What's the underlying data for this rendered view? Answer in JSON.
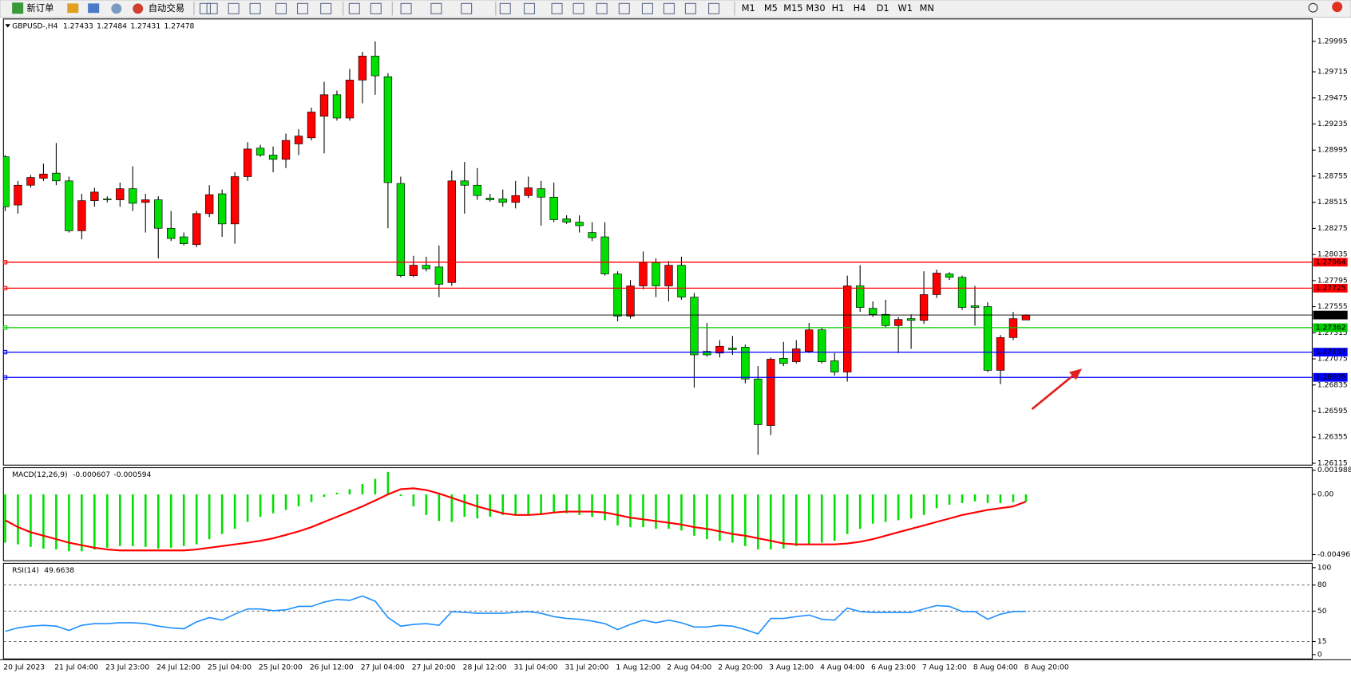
{
  "toolbar": {
    "new_order": "新订单",
    "auto_trading": "自动交易",
    "timeframes": [
      "M1",
      "M5",
      "M15",
      "M30",
      "H1",
      "H4",
      "D1",
      "W1",
      "MN"
    ]
  },
  "chart_data": [
    {
      "type": "candlestick",
      "title": "GBPUSD-,H4",
      "bull_color": "#ff0000",
      "bear_color": "#00e000",
      "ylim": [
        1.26098,
        1.30201
      ],
      "yticks": [
        1.29995,
        1.29715,
        1.29475,
        1.29235,
        1.28995,
        1.28755,
        1.28515,
        1.28275,
        1.28035,
        1.27795,
        1.27555,
        1.27315,
        1.27075,
        1.26835,
        1.26595,
        1.26355,
        1.26115
      ],
      "hlines": [
        {
          "value": 1.27964,
          "color": "#ff0000"
        },
        {
          "value": 1.27725,
          "color": "#ff0000"
        },
        {
          "value": 1.27362,
          "color": "#00cc00"
        },
        {
          "value": 1.27137,
          "color": "#0000ff"
        },
        {
          "value": 1.26905,
          "color": "#0000ff"
        }
      ],
      "categories": [
        "20 Jul 2023",
        null,
        null,
        null,
        "21 Jul 04:00",
        null,
        null,
        null,
        "23 Jul 23:00",
        null,
        null,
        null,
        "24 Jul 12:00",
        null,
        null,
        null,
        "25 Jul 04:00",
        null,
        null,
        null,
        "25 Jul 20:00",
        null,
        null,
        null,
        "26 Jul 12:00",
        null,
        null,
        null,
        "27 Jul 04:00",
        null,
        null,
        null,
        "27 Jul 20:00",
        null,
        null,
        null,
        "28 Jul 12:00",
        null,
        null,
        null,
        "31 Jul 04:00",
        null,
        null,
        null,
        "31 Jul 20:00",
        null,
        null,
        null,
        "1 Aug 12:00",
        null,
        null,
        null,
        "2 Aug 04:00",
        null,
        null,
        null,
        "2 Aug 20:00",
        null,
        null,
        null,
        "3 Aug 12:00",
        null,
        null,
        null,
        "4 Aug 04:00",
        null,
        null,
        null,
        "6 Aug 23:00",
        null,
        null,
        null,
        "7 Aug 12:00",
        null,
        null,
        null,
        "8 Aug 04:00",
        null,
        null,
        null,
        "8 Aug 20:00"
      ],
      "ohlc": [
        [
          1.28934,
          1.28949,
          1.28435,
          1.28474
        ],
        [
          1.2849,
          1.28712,
          1.28411,
          1.28672
        ],
        [
          1.28672,
          1.28767,
          1.28648,
          1.28743
        ],
        [
          1.28736,
          1.2887,
          1.28712,
          1.28775
        ],
        [
          1.28783,
          1.2906,
          1.28672,
          1.28712
        ],
        [
          1.28712,
          1.28751,
          1.28237,
          1.28253
        ],
        [
          1.28253,
          1.28593,
          1.28174,
          1.2853
        ],
        [
          1.2853,
          1.28648,
          1.28474,
          1.28609
        ],
        [
          1.28546,
          1.2857,
          1.28514,
          1.28538
        ],
        [
          1.28538,
          1.28696,
          1.28474,
          1.2864
        ],
        [
          1.2864,
          1.28846,
          1.28435,
          1.28506
        ],
        [
          1.28514,
          1.28593,
          1.28237,
          1.28538
        ],
        [
          1.28538,
          1.2857,
          1.27999,
          1.28276
        ],
        [
          1.28276,
          1.28435,
          1.28158,
          1.28182
        ],
        [
          1.28197,
          1.28237,
          1.28118,
          1.28134
        ],
        [
          1.28126,
          1.28435,
          1.28102,
          1.28411
        ],
        [
          1.28411,
          1.28672,
          1.28379,
          1.28585
        ],
        [
          1.28593,
          1.28633,
          1.28197,
          1.28316
        ],
        [
          1.28316,
          1.28791,
          1.28134,
          1.28751
        ],
        [
          1.28751,
          1.29068,
          1.28712,
          1.29005
        ],
        [
          1.29013,
          1.29044,
          1.28934,
          1.28949
        ],
        [
          1.28949,
          1.29028,
          1.28791,
          1.2891
        ],
        [
          1.2891,
          1.29147,
          1.2883,
          1.29084
        ],
        [
          1.29052,
          1.29187,
          1.28949,
          1.29124
        ],
        [
          1.29108,
          1.29385,
          1.29084,
          1.29345
        ],
        [
          1.29306,
          1.29623,
          1.28965,
          1.29504
        ],
        [
          1.29504,
          1.29543,
          1.29266,
          1.2929
        ],
        [
          1.2929,
          1.29741,
          1.29266,
          1.29639
        ],
        [
          1.29639,
          1.29899,
          1.29425,
          1.2986
        ],
        [
          1.2986,
          1.29995,
          1.29504,
          1.29678
        ],
        [
          1.2967,
          1.29702,
          1.28276,
          1.28696
        ],
        [
          1.28688,
          1.28751,
          1.27825,
          1.27841
        ],
        [
          1.27841,
          1.28023,
          1.27825,
          1.27936
        ],
        [
          1.27936,
          1.28015,
          1.2788,
          1.27904
        ],
        [
          1.2792,
          1.28118,
          1.27643,
          1.27761
        ],
        [
          1.27777,
          1.28807,
          1.27746,
          1.28712
        ],
        [
          1.28712,
          1.28886,
          1.28411,
          1.28672
        ],
        [
          1.28672,
          1.2883,
          1.28538,
          1.28577
        ],
        [
          1.28554,
          1.28593,
          1.28522,
          1.28538
        ],
        [
          1.28546,
          1.28633,
          1.28474,
          1.28514
        ],
        [
          1.28514,
          1.28712,
          1.28459,
          1.28577
        ],
        [
          1.28577,
          1.28751,
          1.28554,
          1.28648
        ],
        [
          1.2864,
          1.28712,
          1.283,
          1.28562
        ],
        [
          1.28562,
          1.28696,
          1.28332,
          1.28355
        ],
        [
          1.28363,
          1.28395,
          1.28316,
          1.28332
        ],
        [
          1.28332,
          1.28395,
          1.28237,
          1.283
        ],
        [
          1.28237,
          1.28332,
          1.28158,
          1.2819
        ],
        [
          1.28197,
          1.28332,
          1.27841,
          1.27856
        ],
        [
          1.27856,
          1.2788,
          1.27421,
          1.27468
        ],
        [
          1.27468,
          1.27801,
          1.27445,
          1.27746
        ],
        [
          1.27746,
          1.28062,
          1.27714,
          1.27959
        ],
        [
          1.27959,
          1.27999,
          1.27643,
          1.27746
        ],
        [
          1.27746,
          1.27975,
          1.27603,
          1.27936
        ],
        [
          1.27936,
          1.28015,
          1.27619,
          1.27643
        ],
        [
          1.27643,
          1.27682,
          1.26811,
          1.27112
        ],
        [
          1.27144,
          1.27405,
          1.27096,
          1.27112
        ],
        [
          1.27128,
          1.27247,
          1.27088,
          1.27191
        ],
        [
          1.27175,
          1.27286,
          1.27112,
          1.2716
        ],
        [
          1.27183,
          1.27207,
          1.2685,
          1.2689
        ],
        [
          1.2689,
          1.27009,
          1.26193,
          1.26471
        ],
        [
          1.26462,
          1.27088,
          1.26375,
          1.27072
        ],
        [
          1.2708,
          1.27231,
          1.27009,
          1.27033
        ],
        [
          1.27049,
          1.27247,
          1.27033,
          1.27167
        ],
        [
          1.27144,
          1.27405,
          1.27128,
          1.27342
        ],
        [
          1.27342,
          1.27365,
          1.27033,
          1.27049
        ],
        [
          1.27057,
          1.27128,
          1.26922,
          1.26954
        ],
        [
          1.26954,
          1.27841,
          1.26866,
          1.27746
        ],
        [
          1.27746,
          1.27936,
          1.27508,
          1.27548
        ],
        [
          1.2754,
          1.27603,
          1.27461,
          1.27484
        ],
        [
          1.27484,
          1.27619,
          1.27365,
          1.27381
        ],
        [
          1.27381,
          1.27461,
          1.27128,
          1.27437
        ],
        [
          1.27445,
          1.27484,
          1.27167,
          1.27429
        ],
        [
          1.27429,
          1.2788,
          1.27397,
          1.27666
        ],
        [
          1.27666,
          1.27896,
          1.27635,
          1.27864
        ],
        [
          1.27856,
          1.27872,
          1.27801,
          1.27825
        ],
        [
          1.27825,
          1.27841,
          1.27524,
          1.27548
        ],
        [
          1.27563,
          1.27746,
          1.27381,
          1.27548
        ],
        [
          1.27556,
          1.27595,
          1.26954,
          1.2697
        ],
        [
          1.2697,
          1.27294,
          1.26842,
          1.27271
        ],
        [
          1.27271,
          1.27508,
          1.27247,
          1.27445
        ],
        [
          1.27433,
          1.27484,
          1.27431,
          1.27478
        ]
      ]
    },
    {
      "type": "macd",
      "title": "MACD(12,26,9)",
      "ylim": [
        -0.00547,
        0.0022
      ],
      "yticks": [
        0.001988,
        {
          "value": 0,
          "label": "0.00"
        },
        -0.004967
      ],
      "series": [
        {
          "color": "#00e000",
          "values": [
            -0.00398,
            -0.00412,
            -0.00433,
            -0.00447,
            -0.00454,
            -0.00469,
            -0.00469,
            -0.00454,
            -0.0044,
            -0.00426,
            -0.00426,
            -0.00433,
            -0.00447,
            -0.0044,
            -0.00426,
            -0.00412,
            -0.00369,
            -0.00327,
            -0.00284,
            -0.00227,
            -0.00185,
            -0.00156,
            -0.00128,
            -0.00099,
            -0.00064,
            -0.00021,
            0.00014,
            0.00043,
            0.00085,
            0.00128,
            0.00185,
            -0.00014,
            -0.00099,
            -0.0017,
            -0.0022,
            -0.00227,
            -0.00185,
            -0.00199,
            -0.00185,
            -0.0017,
            -0.0017,
            -0.0017,
            -0.0017,
            -0.00156,
            -0.00156,
            -0.0017,
            -0.00185,
            -0.00213,
            -0.00256,
            -0.0027,
            -0.0027,
            -0.00284,
            -0.00284,
            -0.00298,
            -0.00341,
            -0.00369,
            -0.00383,
            -0.00398,
            -0.00426,
            -0.00454,
            -0.00454,
            -0.00447,
            -0.00426,
            -0.00412,
            -0.00398,
            -0.00383,
            -0.00327,
            -0.00284,
            -0.00241,
            -0.00227,
            -0.00213,
            -0.00199,
            -0.0017,
            -0.00114,
            -0.00085,
            -0.00071,
            -0.00057,
            -0.00071,
            -0.00071,
            -0.00064,
            -0.000607
          ]
        },
        {
          "color": "#ff0000",
          "values": [
            -0.00213,
            -0.0027,
            -0.00312,
            -0.00341,
            -0.00369,
            -0.00398,
            -0.00419,
            -0.0044,
            -0.00454,
            -0.00462,
            -0.00462,
            -0.00462,
            -0.00462,
            -0.00462,
            -0.00462,
            -0.00454,
            -0.0044,
            -0.00426,
            -0.00412,
            -0.00398,
            -0.00383,
            -0.00362,
            -0.00334,
            -0.00305,
            -0.0027,
            -0.00227,
            -0.00185,
            -0.00142,
            -0.00099,
            -0.0005,
            0,
            0.00043,
            0.0005,
            0.00036,
            7e-05,
            -0.00028,
            -0.00064,
            -0.00099,
            -0.00128,
            -0.00156,
            -0.0017,
            -0.0017,
            -0.00163,
            -0.00149,
            -0.00142,
            -0.00142,
            -0.00142,
            -0.00149,
            -0.0017,
            -0.00192,
            -0.00206,
            -0.0022,
            -0.00234,
            -0.00249,
            -0.0027,
            -0.00284,
            -0.00305,
            -0.00327,
            -0.00341,
            -0.00362,
            -0.00383,
            -0.00405,
            -0.00412,
            -0.00412,
            -0.00412,
            -0.00412,
            -0.00405,
            -0.00391,
            -0.00369,
            -0.00341,
            -0.00312,
            -0.00284,
            -0.00256,
            -0.00227,
            -0.00199,
            -0.0017,
            -0.00149,
            -0.00128,
            -0.00114,
            -0.00099,
            -0.000594
          ]
        }
      ]
    },
    {
      "type": "line",
      "title": "RSI(14)",
      "ylim": [
        -5,
        105
      ],
      "yticks": [
        100,
        80,
        50,
        15,
        0
      ],
      "series": [
        {
          "color": "#1e90ff",
          "values": [
            26.7,
            30.7,
            32.7,
            33.7,
            32.7,
            27.7,
            33.7,
            35.6,
            35.6,
            36.6,
            36.6,
            35.6,
            32.7,
            30.7,
            29.7,
            37.6,
            42.6,
            39.6,
            46.5,
            52.5,
            52.5,
            50.5,
            51.5,
            55.4,
            55.4,
            60.4,
            63.4,
            62.4,
            67.3,
            61.4,
            42.6,
            32.7,
            34.7,
            35.6,
            33.7,
            49.5,
            48.5,
            47.5,
            47.5,
            47.5,
            48.5,
            49.5,
            47.5,
            43.6,
            41.6,
            40.6,
            38.6,
            35.6,
            28.7,
            34.7,
            39.6,
            36.6,
            39.6,
            36.6,
            31.7,
            31.7,
            33.7,
            32.7,
            28.7,
            23.8,
            41.6,
            41.6,
            43.6,
            45.5,
            40.6,
            39.6,
            53.5,
            49.5,
            48.5,
            48.5,
            48.5,
            48.5,
            52.5,
            56.4,
            55.4,
            49.5,
            49.5,
            40.6,
            46.5,
            49.5,
            49.6638
          ]
        }
      ]
    }
  ]
}
